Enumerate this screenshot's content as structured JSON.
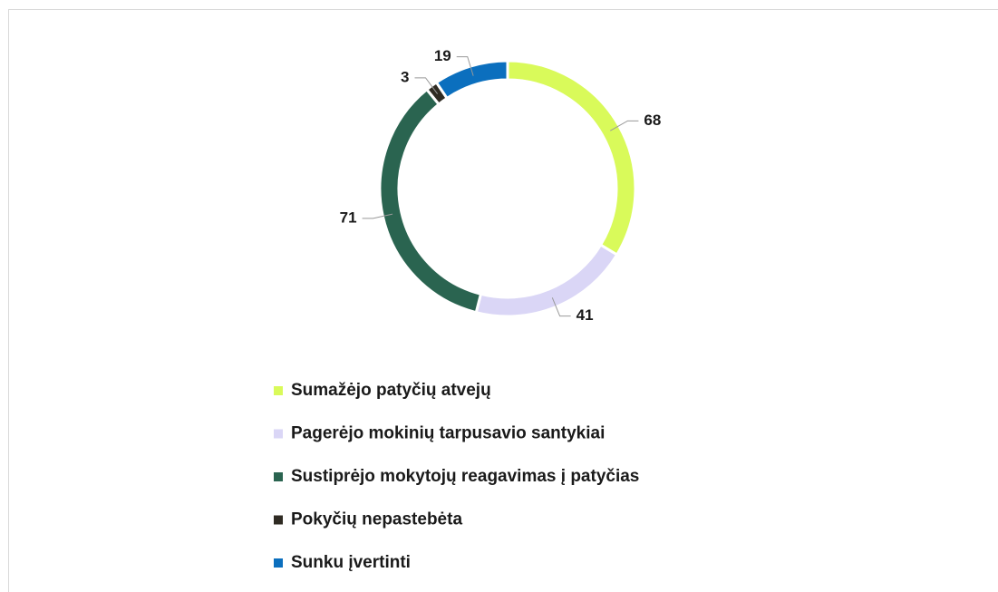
{
  "chart_data": {
    "type": "donut",
    "categories": [
      "Sumažėjo patyčių atvejų",
      "Pagerėjo mokinių tarpusavio santykiai",
      "Sustiprėjo mokytojų reagavimas į patyčias",
      "Pokyčių nepastebėta",
      "Sunku įvertinti"
    ],
    "values": [
      68,
      41,
      71,
      3,
      19
    ],
    "colors": [
      "#d9fa5a",
      "#dad6f6",
      "#2a6450",
      "#2f2b23",
      "#0b6fbe"
    ],
    "legend": "bottom"
  }
}
